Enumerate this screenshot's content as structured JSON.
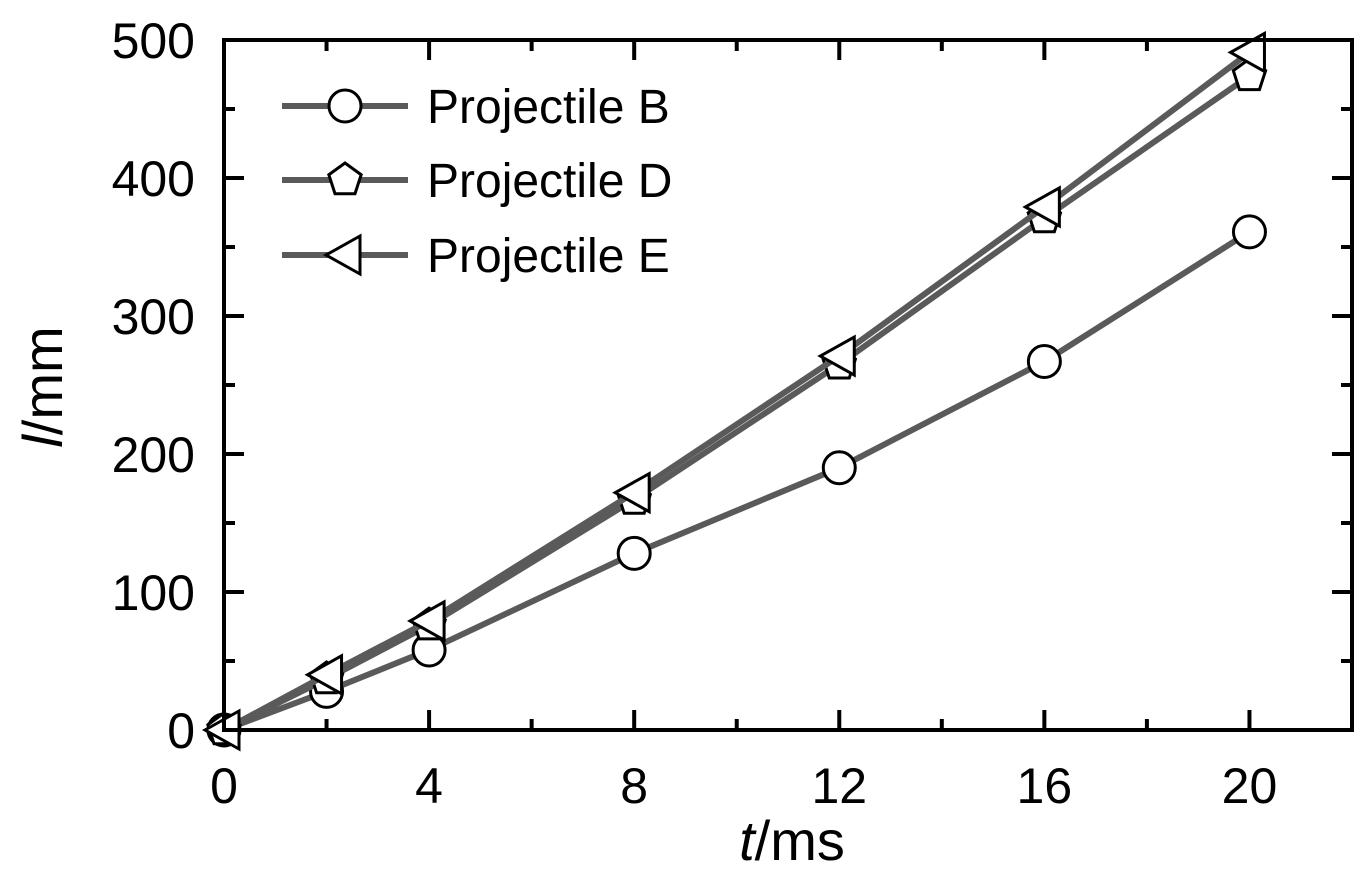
{
  "chart_data": {
    "type": "line",
    "title": "",
    "xlabel": "t/ms",
    "xlabel_italic": "t",
    "xlabel_unit": "/ms",
    "ylabel": "l/mm",
    "ylabel_italic": "l",
    "ylabel_unit": "/mm",
    "xlim": [
      0,
      22
    ],
    "ylim": [
      0,
      500
    ],
    "xticks": [
      0,
      4,
      8,
      12,
      16,
      20
    ],
    "xticks_minor": [
      2,
      6,
      10,
      14,
      18,
      22
    ],
    "yticks": [
      0,
      100,
      200,
      300,
      400,
      500
    ],
    "yticks_minor": [
      50,
      150,
      250,
      350,
      450
    ],
    "xtick_labels": [
      "0",
      "4",
      "8",
      "12",
      "16",
      "20"
    ],
    "ytick_labels": [
      "0",
      "100",
      "200",
      "300",
      "400",
      "500"
    ],
    "grid": false,
    "legend_position": "top-left",
    "line_color": "#5a5a5a",
    "series": [
      {
        "name": "Projectile B",
        "marker": "circle",
        "x": [
          0,
          2,
          4,
          8,
          12,
          16,
          20
        ],
        "values": [
          0,
          28,
          58,
          128,
          190,
          267,
          361
        ]
      },
      {
        "name": "Projectile D",
        "marker": "pentagon",
        "x": [
          0,
          2,
          4,
          8,
          12,
          16,
          20
        ],
        "values": [
          0,
          37,
          76,
          167,
          265,
          371,
          474
        ]
      },
      {
        "name": "Projectile E",
        "marker": "triangle-left",
        "x": [
          0,
          2,
          4,
          8,
          12,
          16,
          20
        ],
        "values": [
          0,
          40,
          79,
          172,
          271,
          379,
          491
        ]
      }
    ]
  }
}
